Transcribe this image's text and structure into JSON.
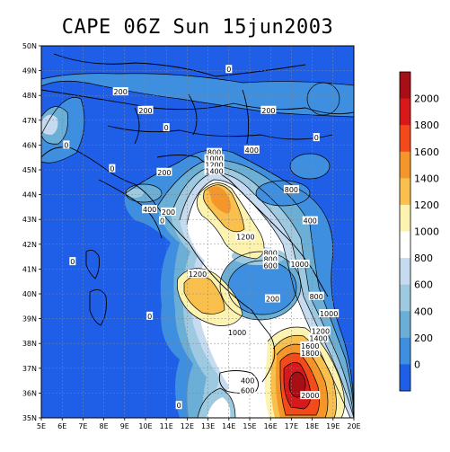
{
  "title": "CAPE 06Z Sun 15jun2003",
  "map": {
    "lat_labels": [
      "50N",
      "49N",
      "48N",
      "47N",
      "46N",
      "45N",
      "44N",
      "43N",
      "42N",
      "41N",
      "40N",
      "39N",
      "38N",
      "37N",
      "36N",
      "35N"
    ],
    "lon_labels": [
      "5E",
      "6E",
      "7E",
      "8E",
      "9E",
      "10E",
      "11E",
      "12E",
      "13E",
      "14E",
      "15E",
      "16E",
      "17E",
      "18E",
      "19E",
      "20E"
    ],
    "lon_range": [
      5,
      20
    ],
    "lat_range": [
      35,
      50
    ],
    "grid": true
  },
  "contour_labels": [
    {
      "text": "0",
      "lon": 14.0,
      "lat": 49.05
    },
    {
      "text": "200",
      "lon": 8.8,
      "lat": 48.15
    },
    {
      "text": "200",
      "lon": 10.0,
      "lat": 47.4
    },
    {
      "text": "200",
      "lon": 15.9,
      "lat": 47.4
    },
    {
      "text": "0",
      "lon": 11.0,
      "lat": 46.7
    },
    {
      "text": "0",
      "lon": 18.2,
      "lat": 46.3
    },
    {
      "text": "0",
      "lon": 6.2,
      "lat": 46.0
    },
    {
      "text": "400",
      "lon": 15.1,
      "lat": 45.8
    },
    {
      "text": "0",
      "lon": 8.4,
      "lat": 45.05
    },
    {
      "text": "200",
      "lon": 10.9,
      "lat": 44.9
    },
    {
      "text": "800",
      "lon": 13.3,
      "lat": 45.7
    },
    {
      "text": "1000",
      "lon": 13.3,
      "lat": 45.45
    },
    {
      "text": "1200",
      "lon": 13.3,
      "lat": 45.2
    },
    {
      "text": "1400",
      "lon": 13.3,
      "lat": 44.95
    },
    {
      "text": "800",
      "lon": 17.0,
      "lat": 44.2
    },
    {
      "text": "400",
      "lon": 10.2,
      "lat": 43.4
    },
    {
      "text": "200",
      "lon": 11.1,
      "lat": 43.3
    },
    {
      "text": "0",
      "lon": 10.8,
      "lat": 42.95
    },
    {
      "text": "400",
      "lon": 17.9,
      "lat": 42.95
    },
    {
      "text": "1200",
      "lon": 14.8,
      "lat": 42.3
    },
    {
      "text": "0",
      "lon": 6.5,
      "lat": 41.3
    },
    {
      "text": "800",
      "lon": 16.0,
      "lat": 41.65
    },
    {
      "text": "800",
      "lon": 16.0,
      "lat": 41.4
    },
    {
      "text": "600",
      "lon": 16.0,
      "lat": 41.15
    },
    {
      "text": "1000",
      "lon": 17.4,
      "lat": 41.2
    },
    {
      "text": "1200",
      "lon": 12.5,
      "lat": 40.8
    },
    {
      "text": "800",
      "lon": 18.2,
      "lat": 39.9
    },
    {
      "text": "200",
      "lon": 16.1,
      "lat": 39.8
    },
    {
      "text": "0",
      "lon": 10.2,
      "lat": 39.1
    },
    {
      "text": "1000",
      "lon": 18.8,
      "lat": 39.2
    },
    {
      "text": "1000",
      "lon": 14.4,
      "lat": 38.45
    },
    {
      "text": "1200",
      "lon": 18.4,
      "lat": 38.5
    },
    {
      "text": "1400",
      "lon": 18.3,
      "lat": 38.2
    },
    {
      "text": "1600",
      "lon": 17.9,
      "lat": 37.9
    },
    {
      "text": "1800",
      "lon": 17.9,
      "lat": 37.6
    },
    {
      "text": "400",
      "lon": 14.9,
      "lat": 36.5
    },
    {
      "text": "600",
      "lon": 14.9,
      "lat": 36.1
    },
    {
      "text": "2000",
      "lon": 17.9,
      "lat": 35.9
    },
    {
      "text": "0",
      "lon": 11.6,
      "lat": 35.5
    }
  ],
  "colorbar": {
    "labels": [
      "2000",
      "1800",
      "1600",
      "1400",
      "1200",
      "1000",
      "800",
      "600",
      "400",
      "200",
      "0"
    ],
    "colors": [
      "#a50f15",
      "#d7191c",
      "#f24a1a",
      "#f5962a",
      "#fac04e",
      "#fdf3b0",
      "#ffffff",
      "#c6dbef",
      "#9ecae1",
      "#6baed6",
      "#3f8fe0",
      "#1f5fe8"
    ]
  },
  "palette": {
    "level0": "#1f5fe8",
    "level200": "#3f8fe0",
    "level400": "#6baed6",
    "level600": "#9ecae1",
    "level800": "#c6dbef",
    "level1000": "#ffffff",
    "level1200": "#fdf3b0",
    "level1400": "#fac04e",
    "level1600": "#f5962a",
    "level1800": "#f24a1a",
    "level2000": "#d7191c",
    "level2200": "#a50f15"
  }
}
